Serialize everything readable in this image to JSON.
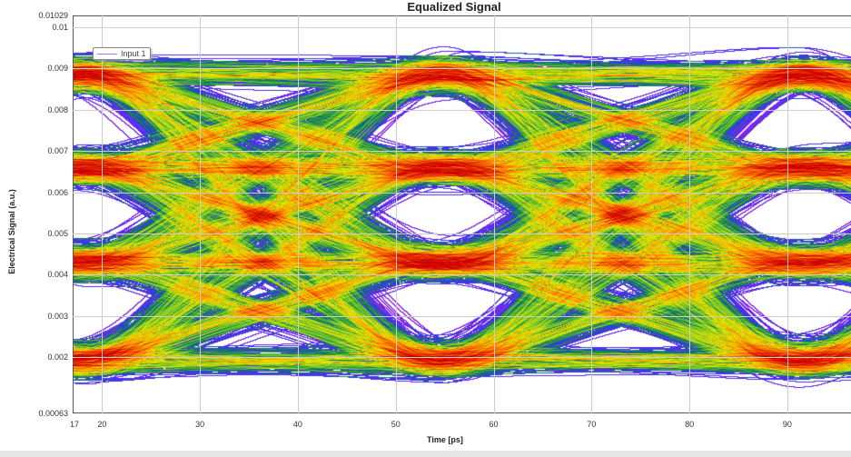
{
  "chart_data": {
    "type": "heatmap",
    "subtype": "eye-diagram",
    "title": "Equalized Signal",
    "xlabel": "Time [ps]",
    "ylabel": "Electrical Signal (a.u.)",
    "xlim": [
      17,
      96.5
    ],
    "ylim": [
      0.00063,
      0.01029
    ],
    "x_ticks": [
      "17",
      "20",
      "30",
      "40",
      "50",
      "60",
      "70",
      "80",
      "90"
    ],
    "x_tick_values": [
      17,
      20,
      30,
      40,
      50,
      60,
      70,
      80,
      90
    ],
    "y_ticks": [
      "0.01029",
      "0.01",
      "0.009",
      "0.008",
      "0.007",
      "0.006",
      "0.005",
      "0.004",
      "0.003",
      "0.002",
      "0.00063"
    ],
    "y_tick_values": [
      0.01029,
      0.01,
      0.009,
      0.008,
      0.007,
      0.006,
      0.005,
      0.004,
      0.003,
      0.002,
      0.00063
    ],
    "grid": true,
    "legend": {
      "placement": "top-left",
      "entries": [
        "Input 1"
      ]
    },
    "signal_levels": [
      0.0019,
      0.0043,
      0.0066,
      0.0089
    ],
    "eye_centers_ps": [
      17.5,
      54.5,
      91.5
    ],
    "eye_crossings_ps": [
      36,
      73
    ],
    "eye_openings_center": [
      0.0031,
      0.0053,
      0.0078
    ],
    "colormap": [
      "#ffffff",
      "#e080ff",
      "#8a2be2",
      "#3030ff",
      "#108050",
      "#60c030",
      "#e8e800",
      "#ff8000",
      "#d00000"
    ]
  }
}
